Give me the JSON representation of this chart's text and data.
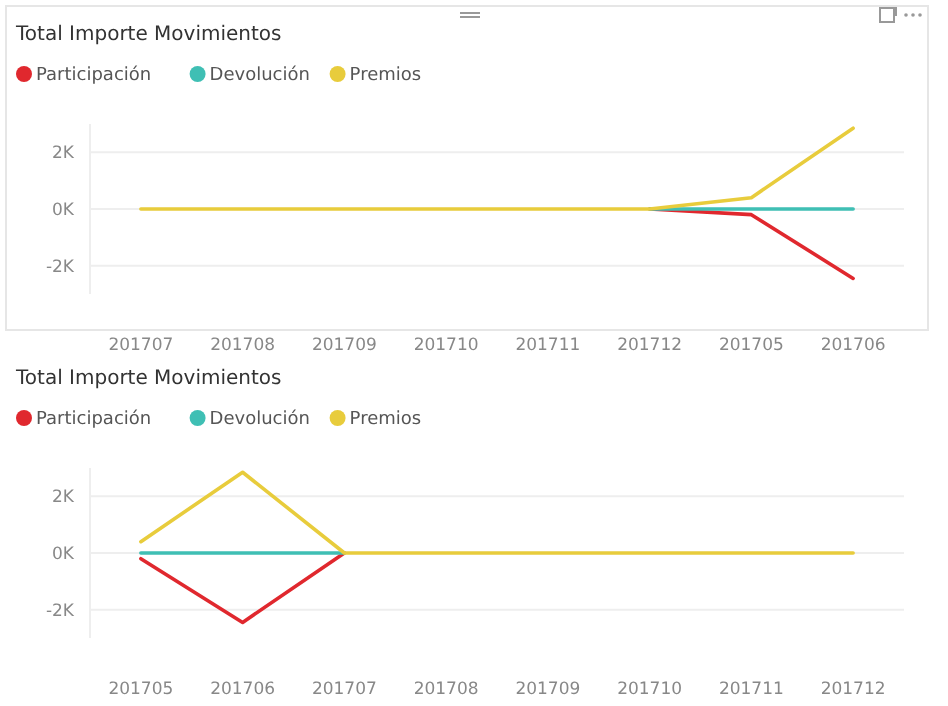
{
  "chart_data": [
    {
      "type": "line",
      "title": "Total Importe Movimientos",
      "categories": [
        "201707",
        "201708",
        "201709",
        "201710",
        "201711",
        "201712",
        "201705",
        "201706"
      ],
      "ylim": [
        -3,
        3
      ],
      "series": [
        {
          "name": "Participación",
          "color": "#e0282e",
          "values": [
            null,
            null,
            null,
            null,
            null,
            0,
            -0.2,
            -2.45
          ]
        },
        {
          "name": "Devolución",
          "color": "#3fbfb4",
          "values": [
            null,
            null,
            null,
            null,
            null,
            0,
            0,
            0
          ]
        },
        {
          "name": "Premios",
          "color": "#e8cc3c",
          "values": [
            0,
            0,
            0,
            0,
            0,
            0,
            0.4,
            2.85
          ]
        }
      ],
      "yticks": [
        {
          "value": -2,
          "label": "-2K"
        },
        {
          "value": 0,
          "label": "0K"
        },
        {
          "value": 2,
          "label": "2K"
        }
      ],
      "grid": "y",
      "legend": "top left",
      "marker": "none",
      "line_style": "solid"
    },
    {
      "type": "line",
      "title": "Total Importe Movimientos",
      "categories": [
        "201705",
        "201706",
        "201707",
        "201708",
        "201709",
        "201710",
        "201711",
        "201712"
      ],
      "ylim": [
        -3,
        3
      ],
      "series": [
        {
          "name": "Participación",
          "color": "#e0282e",
          "values": [
            -0.2,
            -2.45,
            0,
            null,
            null,
            null,
            null,
            null
          ]
        },
        {
          "name": "Devolución",
          "color": "#3fbfb4",
          "values": [
            0,
            0,
            0,
            null,
            null,
            null,
            null,
            null
          ]
        },
        {
          "name": "Premios",
          "color": "#e8cc3c",
          "values": [
            0.4,
            2.85,
            0,
            0,
            0,
            0,
            0,
            0
          ]
        }
      ],
      "yticks": [
        {
          "value": -2,
          "label": "-2K"
        },
        {
          "value": 0,
          "label": "0K"
        },
        {
          "value": 2,
          "label": "2K"
        }
      ],
      "grid": "y",
      "legend": "top left",
      "marker": "none",
      "line_style": "solid"
    }
  ]
}
